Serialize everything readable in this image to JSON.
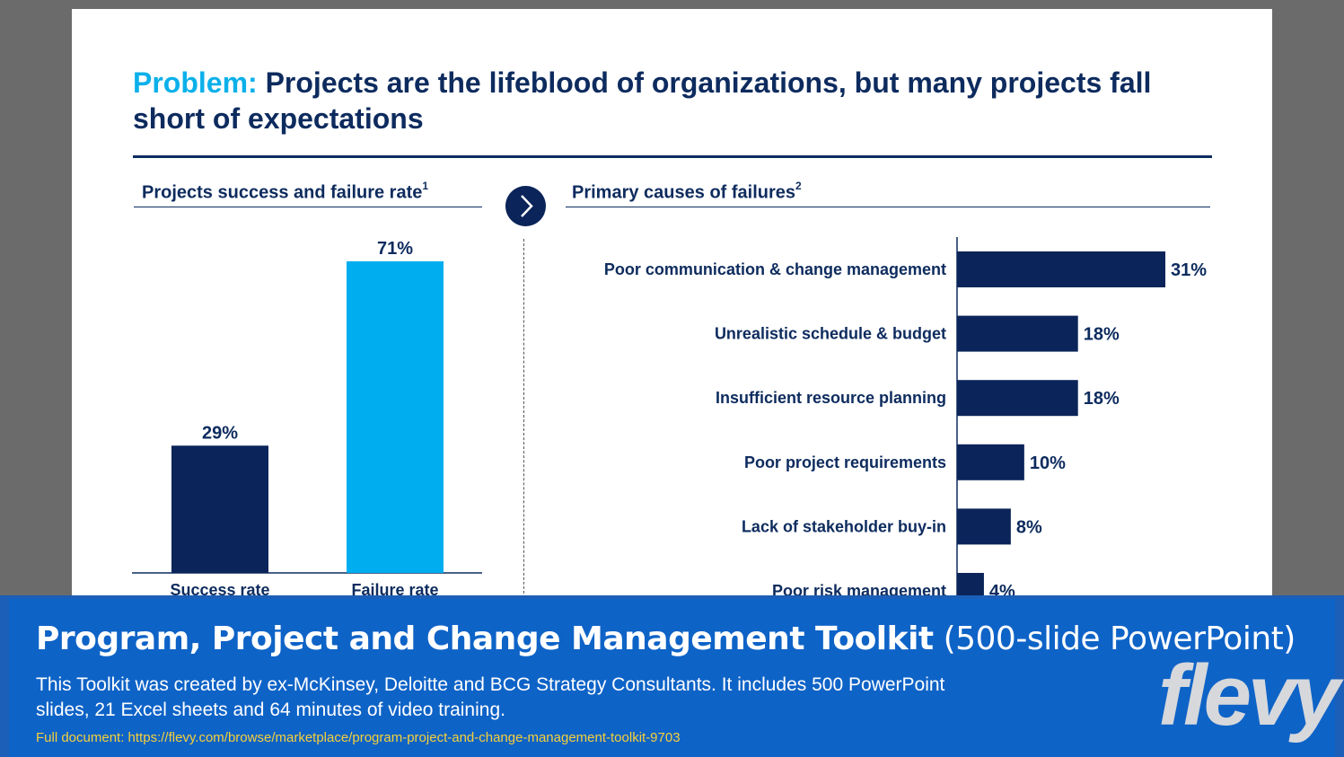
{
  "slide": {
    "title_keyword": "Problem:",
    "title_text": " Projects are the lifeblood of organizations, but many projects fall short of expectations",
    "left_heading": "Projects success and failure rate",
    "left_heading_sup": "1",
    "right_heading": "Primary causes of failures",
    "right_heading_sup": "2"
  },
  "chart_data": [
    {
      "type": "bar",
      "title": "Projects success and failure rate",
      "categories": [
        "Success rate",
        "Failure rate"
      ],
      "values": [
        29,
        71
      ],
      "value_labels": [
        "29%",
        "71%"
      ],
      "colors": [
        "#0b2459",
        "#00aeef"
      ],
      "ylim": [
        0,
        71
      ]
    },
    {
      "type": "bar",
      "orientation": "horizontal",
      "title": "Primary causes of failures",
      "categories": [
        "Poor communication & change management",
        "Unrealistic schedule & budget",
        "Insufficient resource planning",
        "Poor project requirements",
        "Lack of stakeholder buy-in",
        "Poor risk management"
      ],
      "values": [
        31,
        18,
        18,
        10,
        8,
        4
      ],
      "value_labels": [
        "31%",
        "18%",
        "18%",
        "10%",
        "8%",
        "4%"
      ],
      "color": "#0b2459",
      "xlim": [
        0,
        31
      ]
    }
  ],
  "banner": {
    "title_bold": "Program, Project and Change Management Toolkit",
    "title_light": " (500-slide PowerPoint)",
    "description": "This Toolkit was created by ex-McKinsey, Deloitte and BCG Strategy Consultants. It includes 500 PowerPoint slides, 21 Excel sheets and 64 minutes of video training.",
    "url": "Full document: https://flevy.com/browse/marketplace/program-project-and-change-management-toolkit-9703",
    "logo": "flevy"
  }
}
